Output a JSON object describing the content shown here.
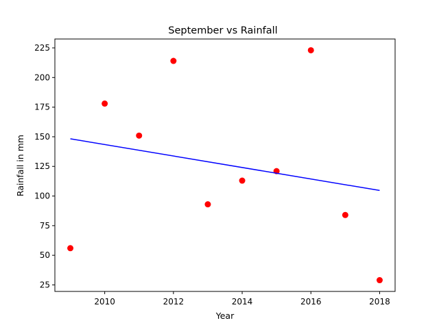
{
  "chart_data": {
    "type": "scatter",
    "title": "September vs Rainfall",
    "xlabel": "Year",
    "ylabel": "Rainfall in mm",
    "xlim": [
      2008.55,
      2018.45
    ],
    "ylim": [
      19.5,
      232.5
    ],
    "xticks": [
      2010,
      2012,
      2014,
      2016,
      2018
    ],
    "yticks": [
      25,
      50,
      75,
      100,
      125,
      150,
      175,
      200,
      225
    ],
    "grid": false,
    "series": [
      {
        "type": "scatter",
        "color": "#ff0000",
        "x": [
          2009,
          2010,
          2011,
          2012,
          2013,
          2014,
          2015,
          2016,
          2017,
          2018
        ],
        "y": [
          56,
          178,
          151,
          214,
          93,
          113,
          121,
          223,
          84,
          29
        ]
      },
      {
        "type": "line",
        "color": "#0000ff",
        "x": [
          2009,
          2018
        ],
        "y": [
          148.3,
          104.7
        ]
      }
    ]
  }
}
